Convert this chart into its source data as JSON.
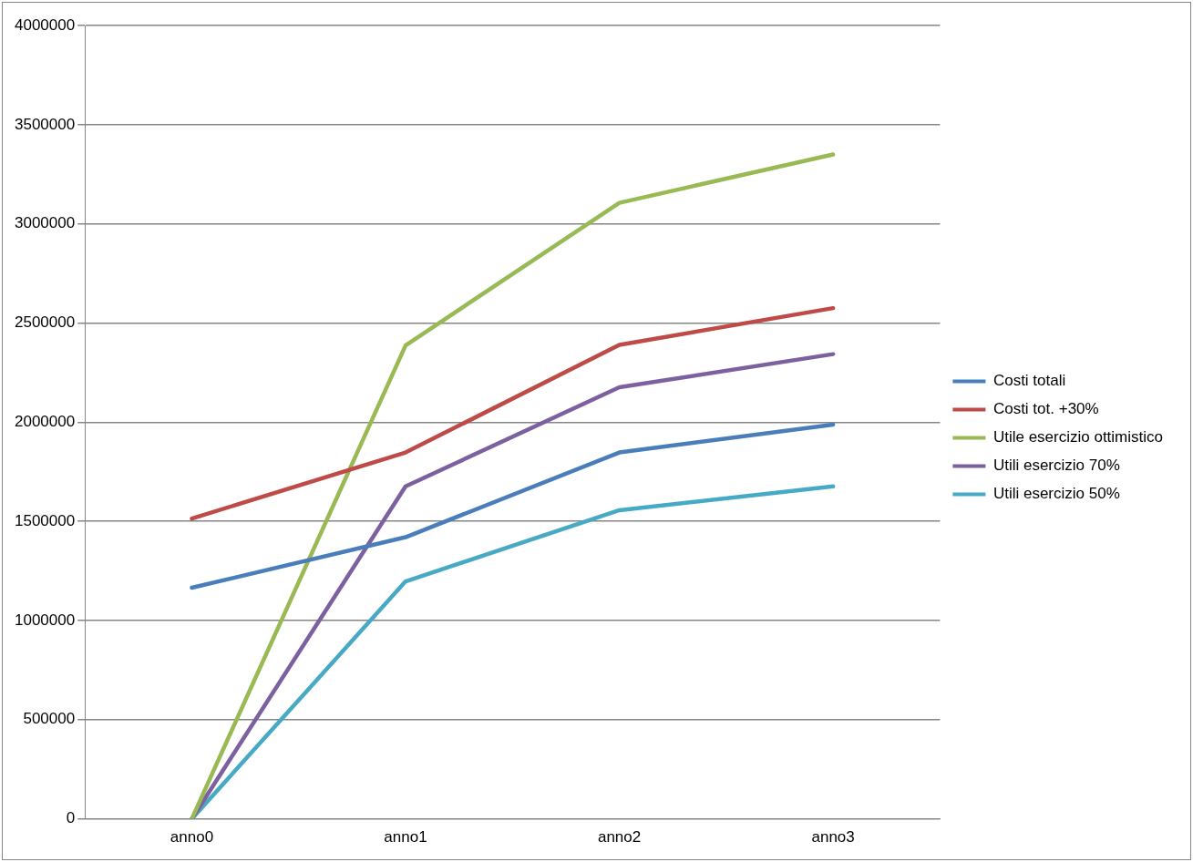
{
  "chart_data": {
    "type": "line",
    "categories": [
      "anno0",
      "anno1",
      "anno2",
      "anno3"
    ],
    "series": [
      {
        "name": "Costi totali",
        "color": "#4a7ebb",
        "values": [
          1165000,
          1420000,
          1847000,
          1988000
        ]
      },
      {
        "name": "Costi tot. +30%",
        "color": "#be4b48",
        "values": [
          1514000,
          1847000,
          2390000,
          2575000
        ]
      },
      {
        "name": "Utile esercizio ottimistico",
        "color": "#98b954",
        "values": [
          0,
          2387000,
          3106000,
          3350000
        ]
      },
      {
        "name": "Utili esercizio 70%",
        "color": "#7d60a0",
        "values": [
          0,
          1676000,
          2176000,
          2343000
        ]
      },
      {
        "name": "Utili esercizio 50%",
        "color": "#46aac5",
        "values": [
          0,
          1197000,
          1556000,
          1676000
        ]
      }
    ],
    "ylim": [
      0,
      4000000
    ],
    "yticks": [
      0,
      500000,
      1000000,
      1500000,
      2000000,
      2500000,
      3000000,
      3500000,
      4000000
    ],
    "grid": "y",
    "legend": "right",
    "marker": "none",
    "line_style": "solid"
  }
}
